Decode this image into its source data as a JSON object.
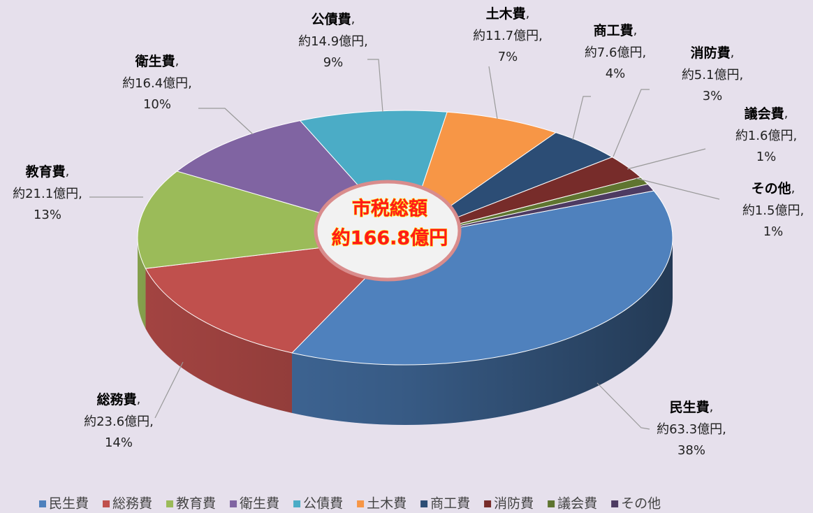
{
  "chart_data": {
    "type": "pie3d",
    "categories": [
      "民生費",
      "総務費",
      "教育費",
      "衛生費",
      "公債費",
      "土木費",
      "商工費",
      "消防費",
      "議会費",
      "その他"
    ],
    "values": [
      63.3,
      23.6,
      21.1,
      16.4,
      14.9,
      11.7,
      7.6,
      5.1,
      1.6,
      1.5
    ],
    "value_labels": [
      "約63.3億円,",
      "約23.6億円,",
      "約21.1億円,",
      "約16.4億円,",
      "約14.9億円,",
      "約11.7億円,",
      "約7.6億円,",
      "約5.1億円,",
      "約1.6億円,",
      "約1.5億円,"
    ],
    "percentages": [
      38,
      14,
      13,
      10,
      9,
      7,
      4,
      3,
      1,
      1
    ],
    "percentage_labels": [
      "38%",
      "14%",
      "13%",
      "10%",
      "9%",
      "7%",
      "4%",
      "3%",
      "1%",
      "1%"
    ],
    "separator": ",",
    "colors": [
      "#4f81bd",
      "#c0504d",
      "#9bbb59",
      "#8064a2",
      "#4bacc6",
      "#f79646",
      "#2c4d75",
      "#772c2a",
      "#5f7530",
      "#4d3b62"
    ],
    "center_label": [
      "市税総額",
      "約166.8億円"
    ],
    "legend": "bottom"
  }
}
